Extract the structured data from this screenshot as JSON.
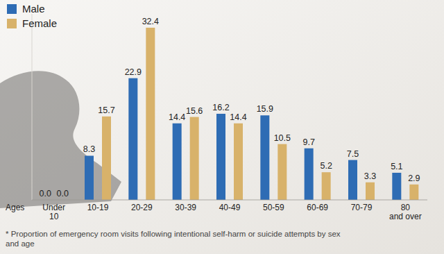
{
  "chart_data": {
    "type": "bar",
    "x_label": "Ages",
    "annotations": [
      "* Proportion of emergency room visits following intentional self-harm or suicide attempts by sex and age"
    ],
    "categories": [
      "Under 10",
      "10-19",
      "20-29",
      "30-39",
      "40-49",
      "50-59",
      "60-69",
      "70-79",
      "80 and over"
    ],
    "series": [
      {
        "name": "Male",
        "color": "#2e6cb4",
        "values": [
          0,
          8.3,
          22.9,
          14.4,
          16.2,
          15.9,
          9.7,
          7.5,
          5.1
        ],
        "value_labels": [
          "0.0",
          "8.3",
          "22.9",
          "14.4",
          "16.2",
          "15.9",
          "9.7",
          "7.5",
          "5.1"
        ]
      },
      {
        "name": "Female",
        "color": "#d8b26a",
        "values": [
          0,
          15.7,
          32.4,
          15.6,
          14.4,
          10.5,
          5.2,
          3.3,
          2.9
        ],
        "value_labels": [
          "0.0",
          "15.7",
          "32.4",
          "15.6",
          "14.4",
          "10.5",
          "5.2",
          "3.3",
          "2.9"
        ]
      }
    ],
    "ylim": [
      0,
      35
    ],
    "data_labels": true,
    "tick_labels": "x",
    "legend": "top-left"
  }
}
